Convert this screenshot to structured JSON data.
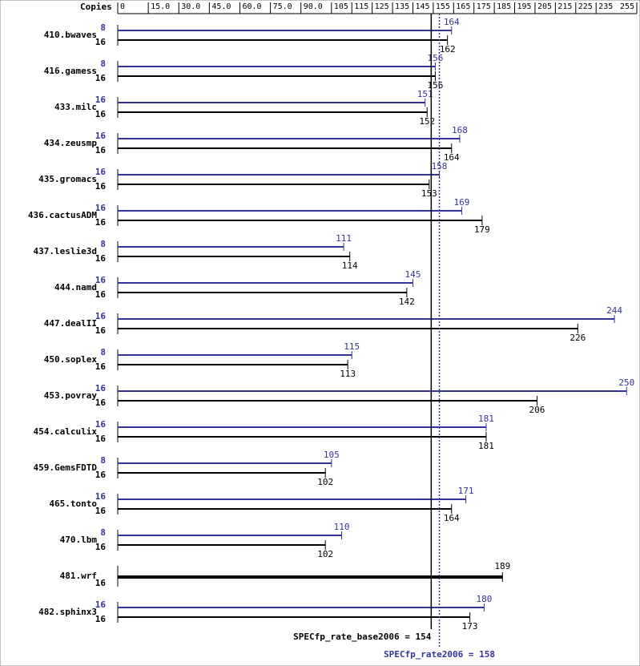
{
  "chart_data": {
    "type": "bar",
    "orientation": "horizontal",
    "axis_label": "Copies",
    "categories": [
      "410.bwaves",
      "416.gamess",
      "433.milc",
      "434.zeusmp",
      "435.gromacs",
      "436.cactusADM",
      "437.leslie3d",
      "444.namd",
      "447.dealII",
      "450.soplex",
      "453.povray",
      "454.calculix",
      "459.GemsFDTD",
      "465.tonto",
      "470.lbm",
      "481.wrf",
      "482.sphinx3"
    ],
    "series": [
      {
        "color": "#333399",
        "copies": [
          8,
          8,
          16,
          16,
          16,
          16,
          8,
          16,
          16,
          8,
          16,
          16,
          8,
          16,
          8,
          null,
          16
        ],
        "values": [
          164,
          156,
          151,
          168,
          158,
          169,
          111,
          145,
          244,
          115,
          250,
          181,
          105,
          171,
          110,
          null,
          180
        ]
      },
      {
        "color": "#000000",
        "copies": [
          16,
          16,
          16,
          16,
          16,
          16,
          16,
          16,
          16,
          16,
          16,
          16,
          16,
          16,
          16,
          16,
          16
        ],
        "values": [
          162,
          156,
          152,
          164,
          153,
          179,
          114,
          142,
          226,
          113,
          206,
          181,
          102,
          164,
          102,
          189,
          173
        ]
      }
    ],
    "reference_lines": [
      {
        "label": "SPECfp_rate_base2006 = 154",
        "value": 154,
        "color": "#000000",
        "style": "solid"
      },
      {
        "label": "SPECfp_rate2006 = 158",
        "value": 158,
        "color": "#333399",
        "style": "dotted"
      }
    ],
    "xlim": [
      0,
      255
    ],
    "xticks": [
      0,
      {
        "value": 15,
        "label": "15.0"
      },
      {
        "value": 30,
        "label": "30.0"
      },
      {
        "value": 45,
        "label": "45.0"
      },
      {
        "value": 60,
        "label": "60.0"
      },
      {
        "value": 75,
        "label": "75.0"
      },
      {
        "value": 90,
        "label": "90.0"
      },
      105,
      115,
      125,
      135,
      145,
      155,
      165,
      175,
      185,
      195,
      205,
      215,
      225,
      235,
      255
    ]
  }
}
